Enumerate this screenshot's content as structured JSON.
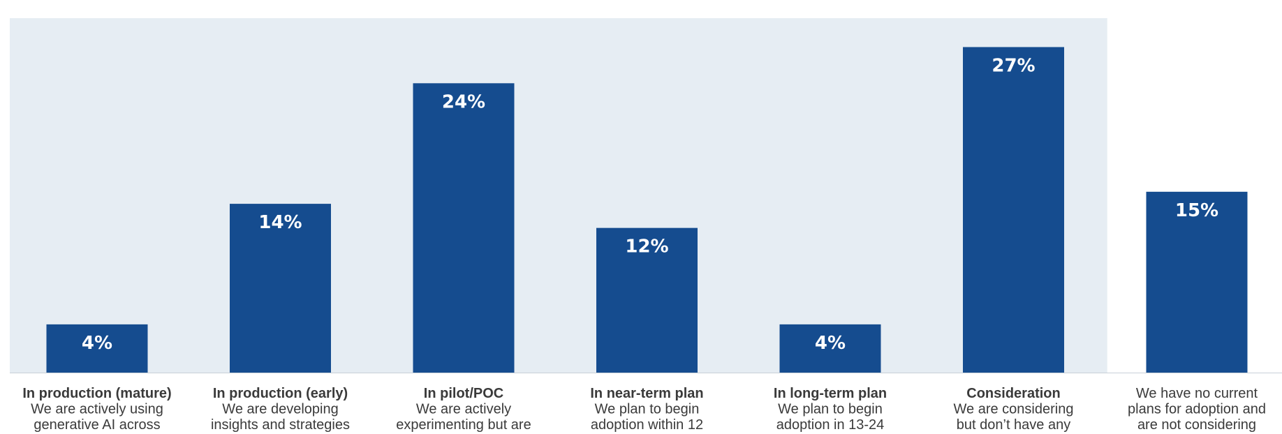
{
  "chart_data": {
    "type": "bar",
    "ylim": [
      0,
      30
    ],
    "categories": [
      "In production (mature)",
      "In production (early)",
      "In pilot/POC",
      "In near-term plan",
      "In long-term plan",
      "Consideration",
      ""
    ],
    "descriptions": [
      [
        "We are actively using",
        "generative AI across"
      ],
      [
        "We are developing",
        "insights and strategies"
      ],
      [
        "We are actively",
        "experimenting but are"
      ],
      [
        "We plan to begin",
        "adoption within 12"
      ],
      [
        "We plan to begin",
        "adoption in 13-24"
      ],
      [
        "We are considering",
        "but don’t have any"
      ],
      [
        "We have no current",
        "plans for adoption and",
        "are not considering"
      ]
    ],
    "values": [
      4,
      14,
      24,
      12,
      4,
      27,
      15
    ],
    "data_labels": [
      "4%",
      "14%",
      "24%",
      "12%",
      "4%",
      "27%",
      "15%"
    ],
    "highlighted_categories": 6,
    "colors": {
      "bar": "#154c8f",
      "highlight_band": "#e6edf3",
      "axis": "#c8d0d8",
      "label_text": "#ffffff",
      "category_text": "#3a3a3a"
    }
  }
}
